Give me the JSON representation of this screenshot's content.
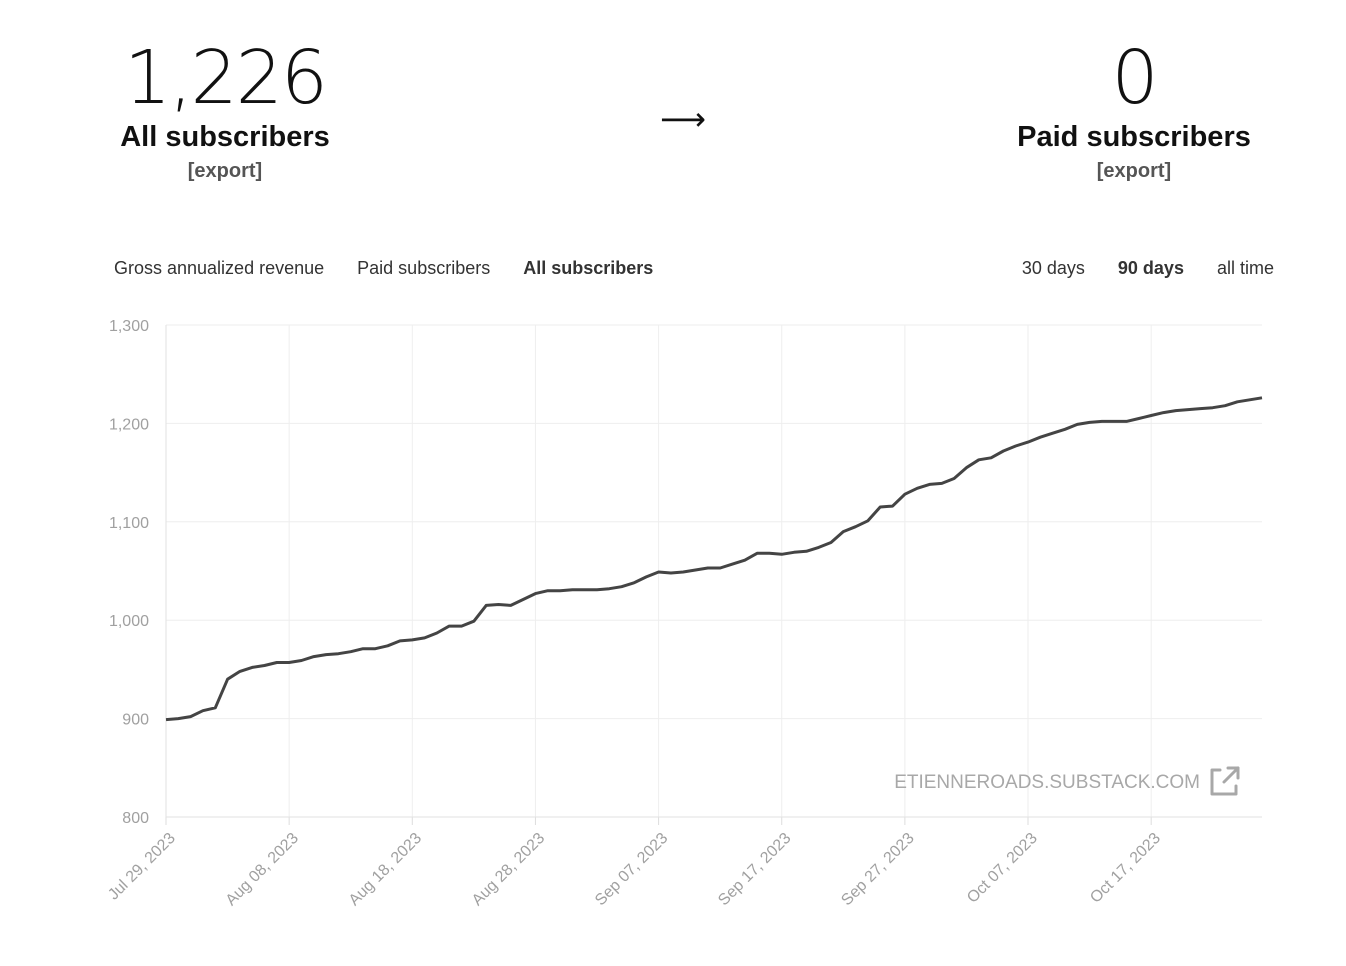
{
  "stats": {
    "all": {
      "value": "1,226",
      "label": "All subscribers",
      "export": "[export]"
    },
    "arrow": "⟶",
    "paid": {
      "value": "0",
      "label": "Paid subscribers",
      "export": "[export]"
    }
  },
  "metric_tabs": [
    {
      "label": "Gross annualized revenue",
      "active": false
    },
    {
      "label": "Paid subscribers",
      "active": false
    },
    {
      "label": "All subscribers",
      "active": true
    }
  ],
  "range_tabs": [
    {
      "label": "30 days",
      "active": false
    },
    {
      "label": "90 days",
      "active": true
    },
    {
      "label": "all time",
      "active": false
    }
  ],
  "watermark": "ETIENNEROADS.SUBSTACK.COM",
  "chart_data": {
    "type": "line",
    "xlabel": "",
    "ylabel": "",
    "ylim": [
      800,
      1300
    ],
    "yticks": [
      "1,300",
      "1,200",
      "1,100",
      "1,000",
      "900",
      "800"
    ],
    "xticks": [
      "Jul 29, 2023",
      "Aug 08, 2023",
      "Aug 18, 2023",
      "Aug 28, 2023",
      "Sep 07, 2023",
      "Sep 17, 2023",
      "Sep 27, 2023",
      "Oct 07, 2023",
      "Oct 17, 2023"
    ],
    "grid": true,
    "line_color": "#444444",
    "series": [
      {
        "values": [
          899,
          900,
          902,
          908,
          911,
          940,
          948,
          952,
          954,
          957,
          957,
          959,
          963,
          965,
          966,
          968,
          971,
          971,
          974,
          979,
          980,
          982,
          987,
          994,
          994,
          999,
          1015,
          1016,
          1015,
          1021,
          1027,
          1030,
          1030,
          1031,
          1031,
          1031,
          1032,
          1034,
          1038,
          1044,
          1049,
          1048,
          1049,
          1051,
          1053,
          1053,
          1057,
          1061,
          1068,
          1068,
          1067,
          1069,
          1070,
          1074,
          1079,
          1090,
          1095,
          1101,
          1115,
          1116,
          1128,
          1134,
          1138,
          1139,
          1144,
          1155,
          1163,
          1165,
          1172,
          1177,
          1181,
          1186,
          1190,
          1194,
          1199,
          1201,
          1202,
          1202,
          1202,
          1205,
          1208,
          1211,
          1213,
          1214,
          1215,
          1216,
          1218,
          1222,
          1224,
          1226
        ]
      }
    ]
  }
}
